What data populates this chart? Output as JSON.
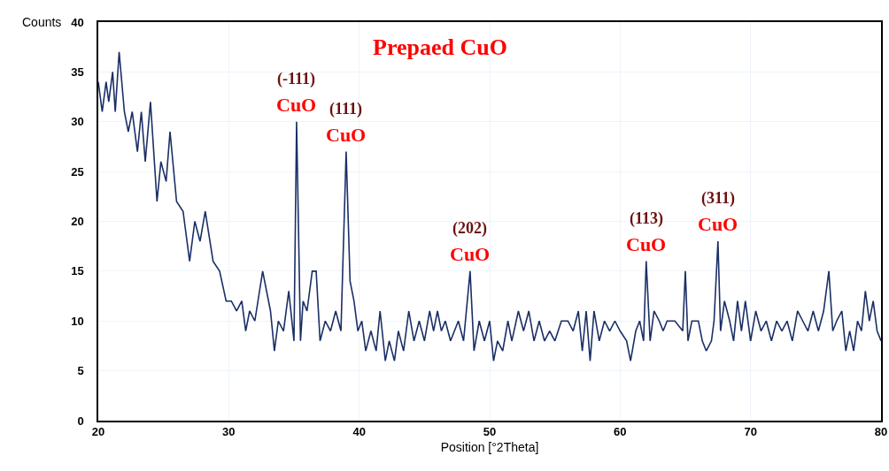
{
  "chart_data": {
    "type": "line",
    "title": "Prepaed CuO",
    "xlabel": "Position [°2Theta]",
    "ylabel": "Counts",
    "xlim": [
      20,
      80
    ],
    "xticks": [
      20,
      30,
      40,
      50,
      60,
      70,
      80
    ],
    "ylim": [
      0,
      40
    ],
    "yticks": [
      0,
      5,
      10,
      15,
      20,
      25,
      30,
      35,
      40
    ],
    "grid": true,
    "marker": "none",
    "line_style": "solid",
    "series": [
      {
        "color": "#1b2f66",
        "x": [
          20,
          20.3,
          20.6,
          20.8,
          21.1,
          21.3,
          21.6,
          22,
          22.3,
          22.6,
          23,
          23.3,
          23.6,
          24,
          24.5,
          24.8,
          25.2,
          25.5,
          26,
          26.5,
          27,
          27.4,
          27.8,
          28.2,
          28.8,
          29.3,
          29.8,
          30.2,
          30.6,
          31,
          31.3,
          31.6,
          32,
          32.6,
          33.2,
          33.5,
          33.8,
          34.2,
          34.6,
          35,
          35.2,
          35.5,
          35.7,
          36,
          36.4,
          36.7,
          37,
          37.4,
          37.8,
          38.2,
          38.6,
          39,
          39.3,
          39.6,
          39.9,
          40.2,
          40.5,
          40.9,
          41.3,
          41.6,
          42,
          42.3,
          42.7,
          43,
          43.4,
          43.8,
          44.2,
          44.6,
          45,
          45.4,
          45.7,
          46,
          46.3,
          46.6,
          47,
          47.3,
          47.6,
          48,
          48.5,
          48.8,
          49.2,
          49.6,
          50,
          50.3,
          50.6,
          51,
          51.4,
          51.7,
          52.2,
          52.6,
          53,
          53.4,
          53.8,
          54.2,
          54.6,
          55,
          55.5,
          56,
          56.4,
          56.8,
          57.1,
          57.4,
          57.7,
          58,
          58.4,
          58.8,
          59.2,
          59.6,
          60,
          60.5,
          60.8,
          61.2,
          61.5,
          61.8,
          62,
          62.3,
          62.6,
          63,
          63.3,
          63.6,
          64.2,
          64.8,
          65,
          65.2,
          65.5,
          66,
          66.3,
          66.6,
          67,
          67.2,
          67.5,
          67.7,
          68,
          68.4,
          68.7,
          69,
          69.3,
          69.6,
          70,
          70.4,
          70.8,
          71.2,
          71.6,
          72,
          72.4,
          72.8,
          73.2,
          73.6,
          74,
          74.4,
          74.8,
          75.2,
          75.6,
          76,
          76.3,
          76.6,
          77,
          77.3,
          77.6,
          77.9,
          78.2,
          78.5,
          78.8,
          79.1,
          79.4,
          79.7,
          80
        ],
        "values": [
          34,
          31,
          34,
          32,
          35,
          31,
          37,
          31,
          29,
          31,
          27,
          31,
          26,
          32,
          22,
          26,
          24,
          29,
          22,
          21,
          16,
          20,
          18,
          21,
          16,
          15,
          12,
          12,
          11,
          12,
          9,
          11,
          10,
          15,
          11,
          7,
          10,
          9,
          13,
          8,
          30,
          8,
          12,
          11,
          15,
          15,
          8,
          10,
          9,
          11,
          9,
          27,
          14,
          12,
          9,
          10,
          7,
          9,
          7,
          11,
          6,
          8,
          6,
          9,
          7,
          11,
          8,
          10,
          8,
          11,
          9,
          11,
          9,
          10,
          8,
          9,
          10,
          8,
          15,
          7,
          10,
          8,
          10,
          6,
          8,
          7,
          10,
          8,
          11,
          9,
          11,
          8,
          10,
          8,
          9,
          8,
          10,
          10,
          9,
          11,
          7,
          11,
          6,
          11,
          8,
          10,
          9,
          10,
          9,
          8,
          6,
          9,
          10,
          8,
          16,
          8,
          11,
          10,
          9,
          10,
          10,
          9,
          15,
          8,
          10,
          10,
          8,
          7,
          8,
          10,
          18,
          9,
          12,
          10,
          8,
          12,
          9,
          12,
          8,
          11,
          9,
          10,
          8,
          10,
          9,
          10,
          8,
          11,
          10,
          9,
          11,
          9,
          11,
          15,
          9,
          10,
          11,
          7,
          9,
          7,
          10,
          9,
          13,
          10,
          12,
          9,
          8
        ]
      }
    ],
    "annotations": [
      {
        "text": "(-111)",
        "x": 35.2,
        "y": 30
      },
      {
        "text": "CuO",
        "x": 35.2,
        "y": 30
      },
      {
        "text": "(111)",
        "x": 39,
        "y": 27
      },
      {
        "text": "CuO",
        "x": 39,
        "y": 27
      },
      {
        "text": "(202)",
        "x": 48.5,
        "y": 15
      },
      {
        "text": "CuO",
        "x": 48.5,
        "y": 15
      },
      {
        "text": "(113)",
        "x": 62,
        "y": 16
      },
      {
        "text": "CuO",
        "x": 62,
        "y": 16
      },
      {
        "text": "(311)",
        "x": 67.5,
        "y": 18
      },
      {
        "text": "CuO",
        "x": 67.5,
        "y": 18
      }
    ]
  }
}
